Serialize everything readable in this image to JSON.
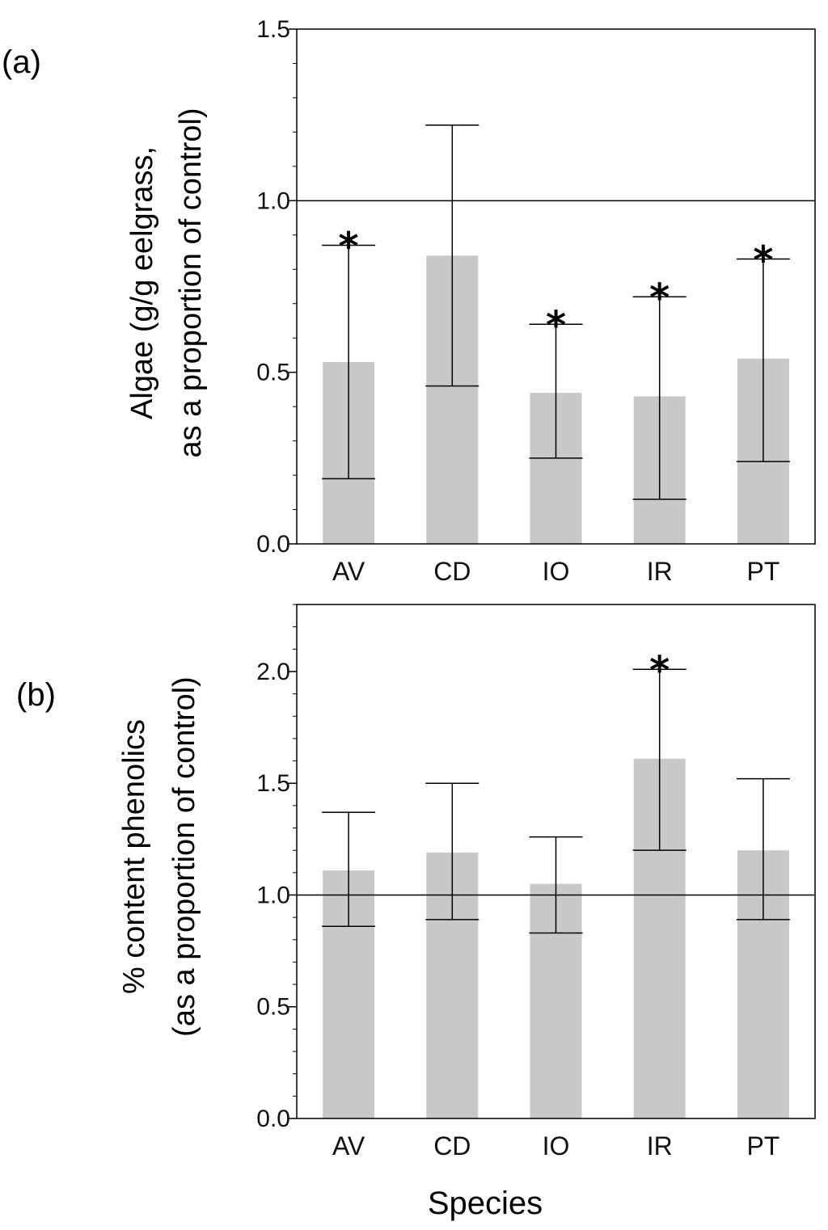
{
  "colors": {
    "bar": "#c8c8c8",
    "line": "#000000"
  },
  "xlabel": "Species",
  "chart_data": [
    {
      "type": "bar",
      "panel_label": "(a)",
      "ylabel_line1": "Algae (g/g eelgrass,",
      "ylabel_line2": "as a proportion of control)",
      "categories": [
        "AV",
        "CD",
        "IO",
        "IR",
        "PT"
      ],
      "values": [
        0.53,
        0.84,
        0.44,
        0.43,
        0.54
      ],
      "err_low": [
        0.19,
        0.46,
        0.25,
        0.13,
        0.24
      ],
      "err_high": [
        0.87,
        1.22,
        0.64,
        0.72,
        0.83
      ],
      "significant": [
        true,
        false,
        true,
        true,
        true
      ],
      "star_symbol": "*",
      "reference_line": 1.0,
      "ylim": [
        0,
        1.5
      ],
      "yticks": [
        0.0,
        0.5,
        1.0,
        1.5
      ],
      "ytick_labels": [
        "0.0",
        "0.5",
        "1.0",
        "1.5"
      ]
    },
    {
      "type": "bar",
      "panel_label": "(b)",
      "ylabel_line1": "% content phenolics",
      "ylabel_line2": "(as a proportion of control)",
      "categories": [
        "AV",
        "CD",
        "IO",
        "IR",
        "PT"
      ],
      "values": [
        1.11,
        1.19,
        1.05,
        1.61,
        1.2
      ],
      "err_low": [
        0.86,
        0.89,
        0.83,
        1.2,
        0.89
      ],
      "err_high": [
        1.37,
        1.5,
        1.26,
        2.01,
        1.52
      ],
      "significant": [
        false,
        false,
        false,
        true,
        false
      ],
      "star_symbol": "*",
      "reference_line": 1.0,
      "ylim": [
        0,
        2.3
      ],
      "yticks": [
        0.0,
        0.5,
        1.0,
        1.5,
        2.0
      ],
      "ytick_labels": [
        "0.0",
        "0.5",
        "1.0",
        "1.5",
        "2.0"
      ]
    }
  ]
}
